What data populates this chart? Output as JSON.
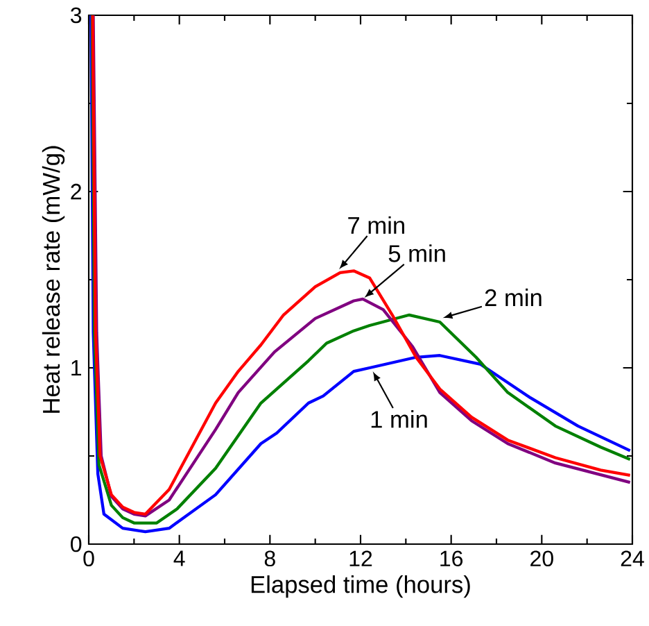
{
  "chart_data": {
    "type": "line",
    "xlabel": "Elapsed time (hours)",
    "ylabel": "Heat release rate (mW/g)",
    "xlim": [
      0,
      24
    ],
    "ylim": [
      0,
      3
    ],
    "xticks": [
      0,
      4,
      8,
      12,
      16,
      20,
      24
    ],
    "yticks": [
      0,
      1,
      2,
      3
    ],
    "grid": false,
    "marker": "none",
    "line_style": "solid",
    "series": [
      {
        "color": "#0000ff",
        "x": [
          0.1,
          0.2,
          0.4,
          0.67,
          1.5,
          2.5,
          3.55,
          5.6,
          7.6,
          8.3,
          9.7,
          10.35,
          11.7,
          12.4,
          14.45,
          15.5,
          17.3,
          19.5,
          21.6,
          23.9
        ],
        "values": [
          3,
          1.2,
          0.4,
          0.17,
          0.09,
          0.07,
          0.09,
          0.28,
          0.57,
          0.63,
          0.8,
          0.84,
          0.98,
          1.0,
          1.06,
          1.07,
          1.02,
          0.83,
          0.67,
          0.53
        ]
      },
      {
        "color": "#008000",
        "x": [
          0.15,
          0.25,
          0.45,
          1,
          1.5,
          2,
          3,
          3.9,
          5.6,
          7.6,
          9.7,
          10.5,
          11.7,
          12.4,
          14.15,
          15.5,
          17.1,
          18.5,
          20.6,
          22.6,
          23.9
        ],
        "values": [
          3,
          1.2,
          0.45,
          0.22,
          0.15,
          0.12,
          0.12,
          0.2,
          0.43,
          0.8,
          1.04,
          1.14,
          1.21,
          1.24,
          1.3,
          1.26,
          1.06,
          0.86,
          0.67,
          0.55,
          0.48
        ]
      },
      {
        "color": "#800080",
        "x": [
          0.2,
          0.35,
          0.55,
          1,
          1.5,
          2,
          2.5,
          3.55,
          5.6,
          6.6,
          8.2,
          10,
          11.7,
          12.1,
          13,
          14.3,
          15.5,
          16.9,
          18.5,
          20.6,
          23.9
        ],
        "values": [
          3,
          1.2,
          0.5,
          0.27,
          0.2,
          0.17,
          0.16,
          0.25,
          0.65,
          0.86,
          1.09,
          1.28,
          1.38,
          1.39,
          1.33,
          1.12,
          0.86,
          0.7,
          0.57,
          0.46,
          0.35
        ]
      },
      {
        "color": "#ff0000",
        "x": [
          0.17,
          0.3,
          0.5,
          1,
          1.5,
          2,
          2.5,
          3.55,
          5.6,
          6.6,
          7.6,
          8.6,
          10,
          11.1,
          11.7,
          12.4,
          13.4,
          14.45,
          15.5,
          16.9,
          18.5,
          20.6,
          22.6,
          23.9
        ],
        "values": [
          3,
          1.2,
          0.5,
          0.28,
          0.21,
          0.18,
          0.17,
          0.31,
          0.8,
          0.98,
          1.13,
          1.3,
          1.46,
          1.54,
          1.55,
          1.51,
          1.3,
          1.06,
          0.88,
          0.72,
          0.59,
          0.49,
          0.42,
          0.39
        ]
      }
    ],
    "annotations": [
      {
        "text": "7 min",
        "x": 11.0,
        "y": 1.55
      },
      {
        "text": "5 min",
        "x": 12.1,
        "y": 1.39
      },
      {
        "text": "2 min",
        "x": 15.55,
        "y": 1.28
      },
      {
        "text": "1 min",
        "x": 12.5,
        "y": 0.99
      }
    ]
  }
}
